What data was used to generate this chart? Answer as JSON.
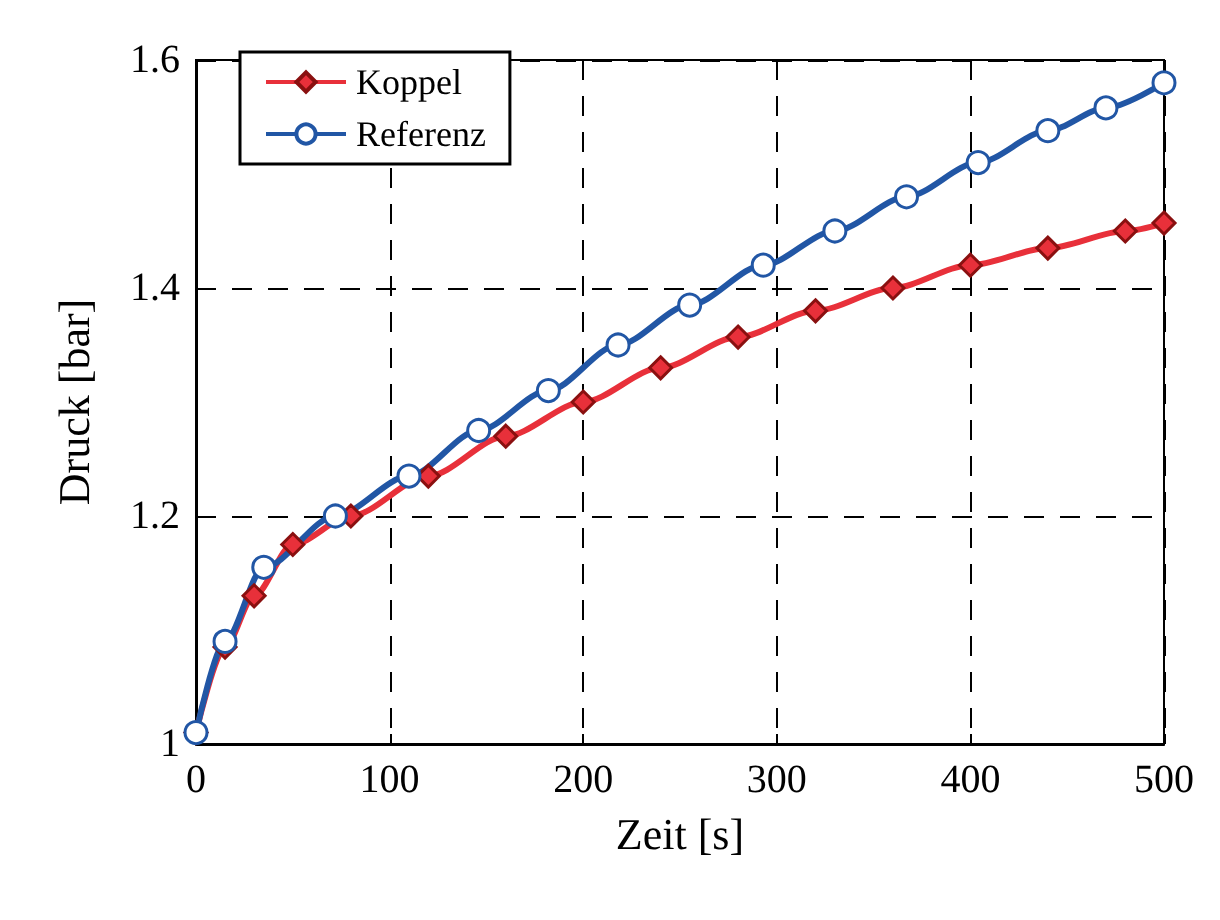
{
  "chart_data": {
    "type": "line",
    "xlabel": "Zeit [s]",
    "ylabel": "Druck [bar]",
    "xlim": [
      0,
      500
    ],
    "xticks": [
      0,
      100,
      200,
      300,
      400,
      500
    ],
    "ylim": [
      1,
      1.6
    ],
    "yticks": [
      1,
      1.2,
      1.4,
      1.6
    ],
    "grid": true,
    "legend": "top left",
    "line_style": "solid",
    "series": [
      {
        "name": "Koppel",
        "color": "#e8303a",
        "marker": "diamond",
        "x": [
          0,
          15,
          30,
          50,
          80,
          120,
          160,
          200,
          240,
          280,
          320,
          360,
          400,
          440,
          480,
          500
        ],
        "values": [
          1.01,
          1.085,
          1.13,
          1.175,
          1.2,
          1.235,
          1.27,
          1.3,
          1.33,
          1.357,
          1.38,
          1.4,
          1.42,
          1.435,
          1.45,
          1.457
        ]
      },
      {
        "name": "Referenz",
        "color": "#2156a5",
        "marker": "circle",
        "x": [
          0,
          15,
          35,
          72,
          110,
          146,
          182,
          218,
          255,
          293,
          330,
          367,
          404,
          440,
          470,
          500
        ],
        "values": [
          1.01,
          1.09,
          1.155,
          1.2,
          1.235,
          1.275,
          1.31,
          1.35,
          1.385,
          1.42,
          1.45,
          1.48,
          1.51,
          1.538,
          1.558,
          1.58
        ]
      }
    ]
  }
}
